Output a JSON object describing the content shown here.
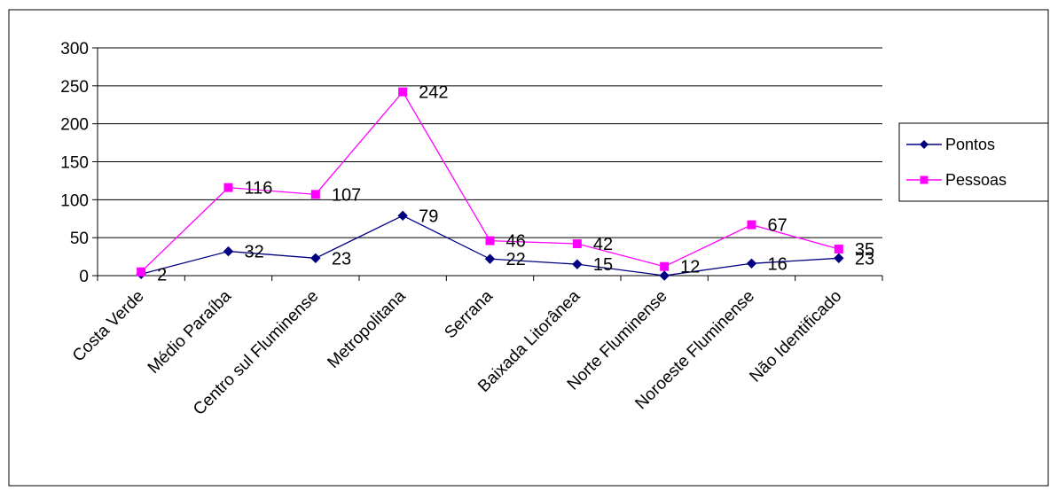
{
  "colors": {
    "pontos": "#000080",
    "pessoas": "#FF00FF",
    "grid": "#000000",
    "background": "#FFFFFF"
  },
  "chart_data": {
    "type": "line",
    "title": "",
    "xlabel": "",
    "ylabel": "",
    "ylim": [
      0,
      300
    ],
    "yticks": [
      0,
      50,
      100,
      150,
      200,
      250,
      300
    ],
    "grid": true,
    "legend_position": "right",
    "categories": [
      "Costa Verde",
      "Médio Paraíba",
      "Centro sul Fluminense",
      "Metropolitana",
      "Serrana",
      "Baixada Litorânea",
      "Norte Fluminense",
      "Noroeste Fluminense",
      "Não Identificado"
    ],
    "series": [
      {
        "name": "Pontos",
        "marker": "diamond",
        "color": "#000080",
        "values": [
          2,
          32,
          23,
          79,
          22,
          15,
          0,
          16,
          23
        ],
        "labels": [
          "2",
          "32",
          "23",
          "79",
          "22",
          "15",
          "",
          "16",
          "23"
        ]
      },
      {
        "name": "Pessoas",
        "marker": "square",
        "color": "#FF00FF",
        "values": [
          5,
          116,
          107,
          242,
          46,
          42,
          12,
          67,
          35
        ],
        "labels": [
          "",
          "116",
          "107",
          "242",
          "46",
          "42",
          "12",
          "67",
          "35"
        ]
      }
    ]
  }
}
